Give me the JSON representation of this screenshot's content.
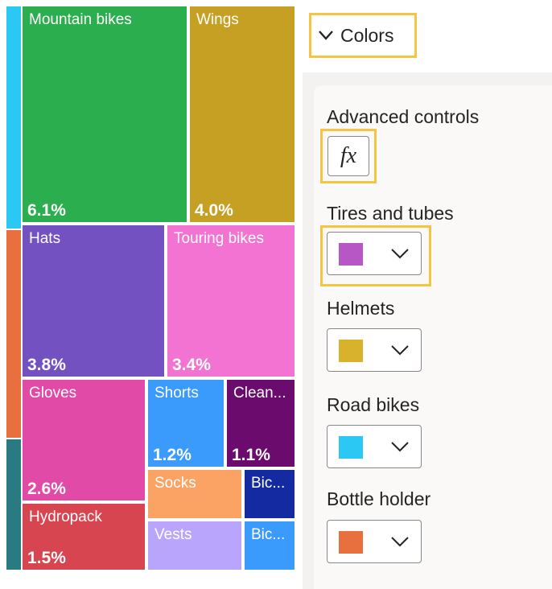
{
  "treemap": {
    "tiles": [
      {
        "name": "Mountain bikes",
        "pct": "6.1%",
        "color": "#2bae4d"
      },
      {
        "name": "Wings",
        "pct": "4.0%",
        "color": "#c6a022"
      },
      {
        "name": "Hats",
        "pct": "3.8%",
        "color": "#7451c1"
      },
      {
        "name": "Touring bikes",
        "pct": "3.4%",
        "color": "#f273d2"
      },
      {
        "name": "Gloves",
        "pct": "2.6%",
        "color": "#e14aa6"
      },
      {
        "name": "Shorts",
        "pct": "1.2%",
        "color": "#3a9bfd"
      },
      {
        "name": "Clean...",
        "pct": "1.1%",
        "color": "#6b0b6e"
      },
      {
        "name": "Hydropack",
        "pct": "1.5%",
        "color": "#d64550"
      },
      {
        "name": "Socks",
        "color": "#fba364"
      },
      {
        "name": "Bic...",
        "color": "#132aa0"
      },
      {
        "name": "Vests",
        "color": "#b9a6fc"
      },
      {
        "name": "Bic...",
        "color": "#3a9bfd"
      }
    ],
    "strip_colors": [
      "#2bc8f3",
      "#e8703f",
      "#2a7a82"
    ]
  },
  "format_pane": {
    "section_title": "Colors",
    "advanced_controls_label": "Advanced controls",
    "fx_label": "fx",
    "series": [
      {
        "label": "Tires and tubes",
        "color": "#b757c6"
      },
      {
        "label": "Helmets",
        "color": "#d8b22a"
      },
      {
        "label": "Road bikes",
        "color": "#2bc8f3"
      },
      {
        "label": "Bottle holder",
        "color": "#e8703f"
      }
    ]
  }
}
